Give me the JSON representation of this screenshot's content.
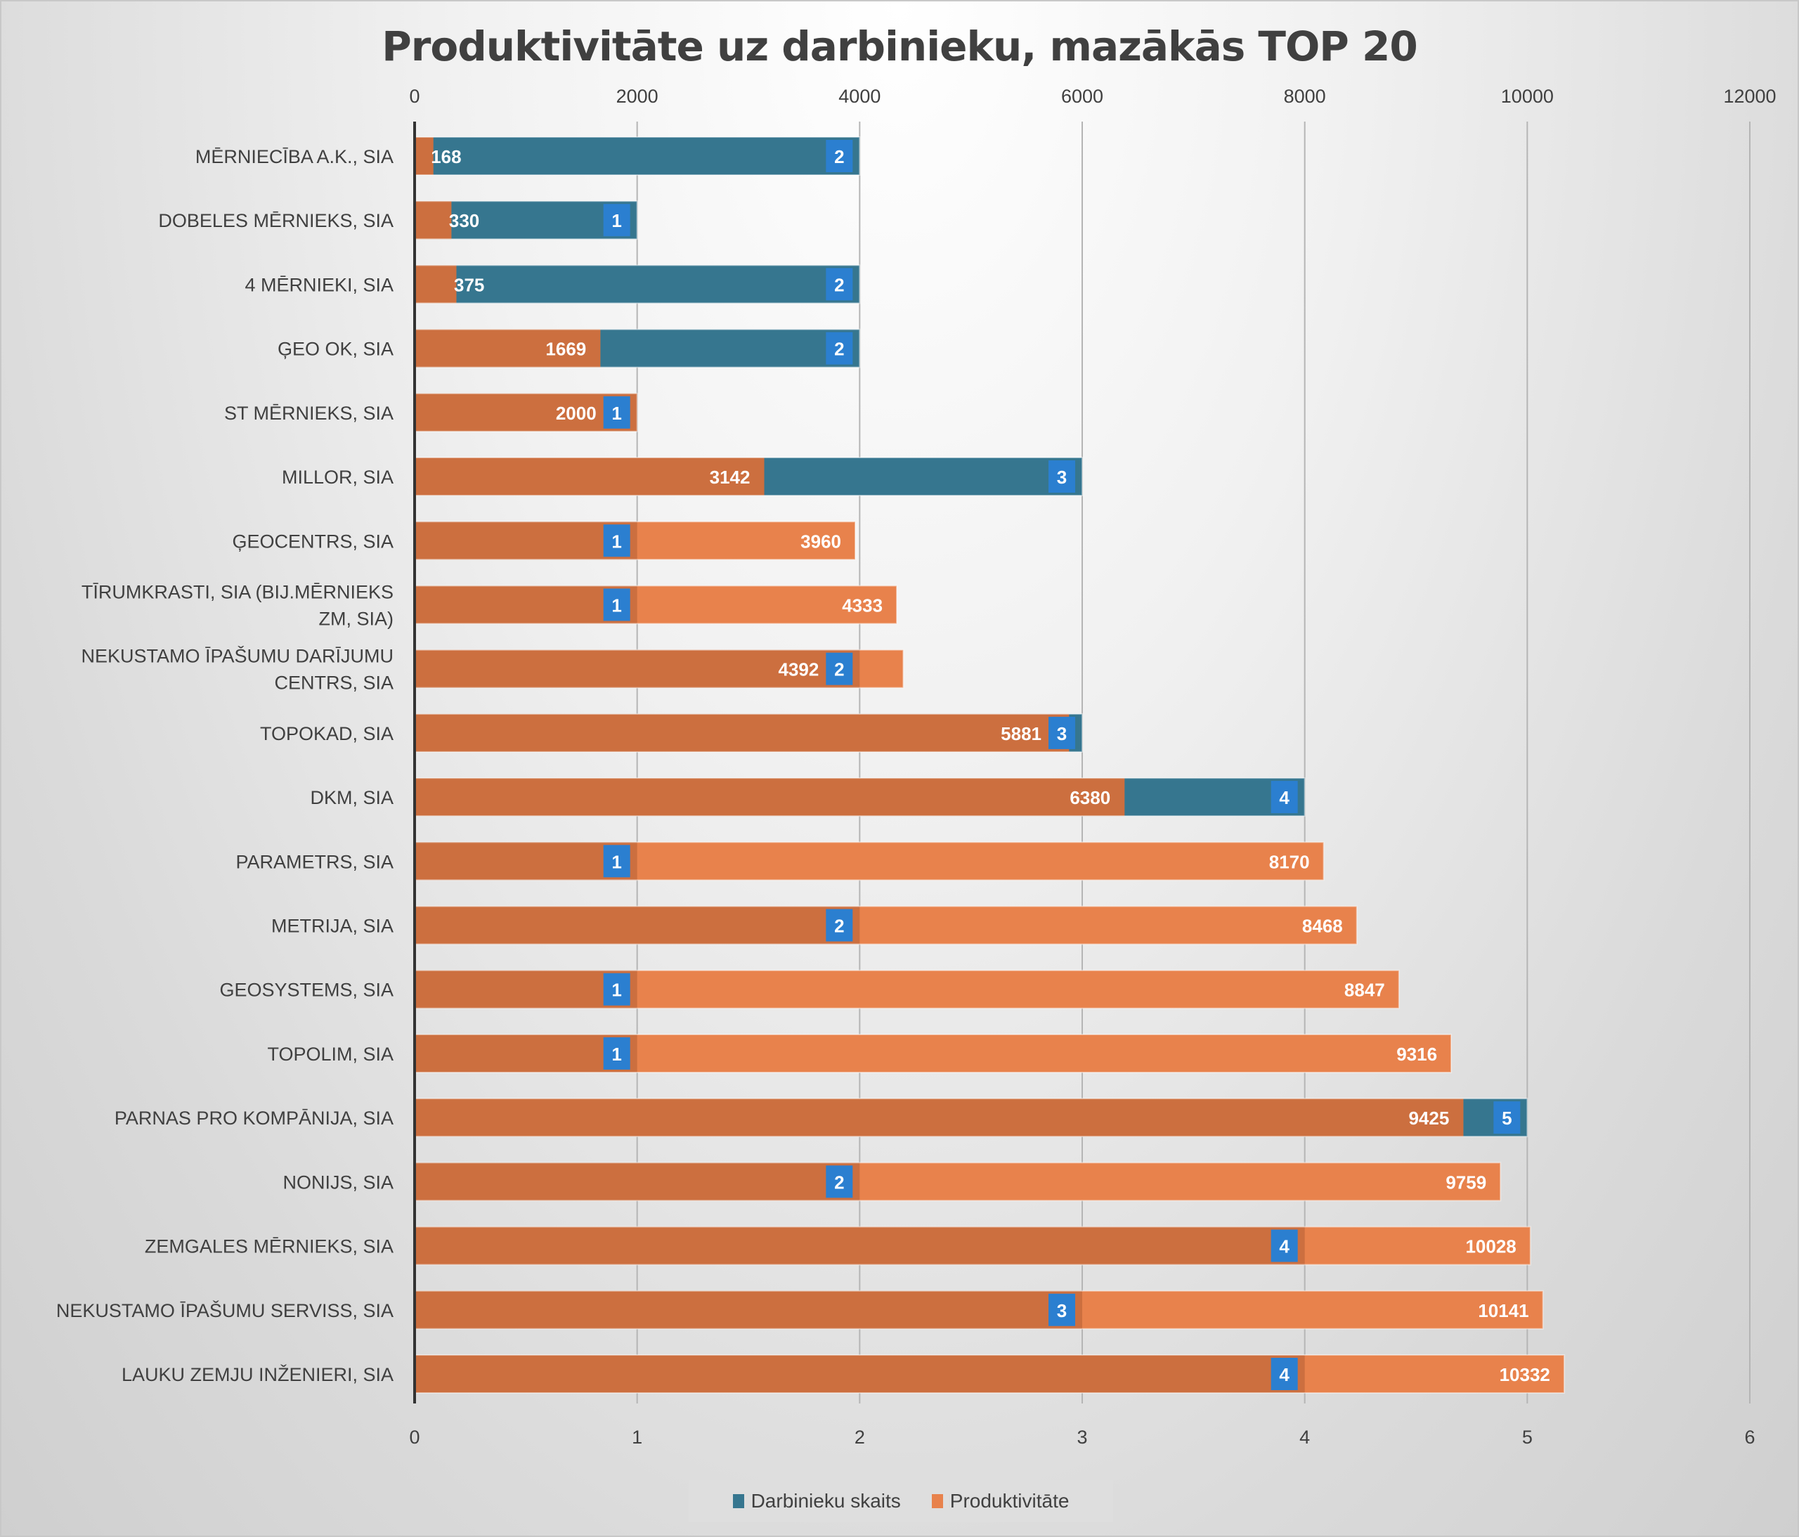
{
  "chart_data": {
    "type": "bar",
    "orientation": "horizontal",
    "title": "Produktivitāte uz darbinieku, mazākās TOP 20",
    "categories": [
      "MĒRNIECĪBA A.K., SIA",
      "DOBELES MĒRNIEKS, SIA",
      "4 MĒRNIEKI, SIA",
      "ĢEO OK, SIA",
      "ST MĒRNIEKS, SIA",
      "MILLOR, SIA",
      "ĢEOCENTRS, SIA",
      "TĪRUMKRASTI, SIA (BIJ.MĒRNIEKS ZM, SIA)",
      "NEKUSTAMO ĪPAŠUMU DARĪJUMU CENTRS, SIA",
      "TOPOKAD, SIA",
      "DKM, SIA",
      "PARAMETRS, SIA",
      "METRIJA, SIA",
      "GEOSYSTEMS, SIA",
      "TOPOLIM, SIA",
      "PARNAS PRO KOMPĀNIJA, SIA",
      "NONIJS, SIA",
      "ZEMGALES MĒRNIEKS, SIA",
      "NEKUSTAMO ĪPAŠUMU SERVISS, SIA",
      "LAUKU ZEMJU INŽENIERI, SIA"
    ],
    "series": [
      {
        "name": "Darbinieku skaits",
        "axis": "bottom",
        "color": "#36768f",
        "label_color": "#2b7fd0",
        "values": [
          2,
          1,
          2,
          2,
          1,
          3,
          1,
          1,
          2,
          3,
          4,
          1,
          2,
          1,
          1,
          5,
          2,
          4,
          3,
          4
        ]
      },
      {
        "name": "Produktivitāte",
        "axis": "top",
        "color": "#e8824c",
        "overlap_color": "#cc6f3f",
        "values": [
          168,
          330,
          375,
          1669,
          2000,
          3142,
          3960,
          4333,
          4392,
          5881,
          6380,
          8170,
          8468,
          8847,
          9316,
          9425,
          9759,
          10028,
          10141,
          10332
        ]
      }
    ],
    "x_bottom": {
      "range": [
        0,
        6
      ],
      "ticks": [
        "0",
        "1",
        "2",
        "3",
        "4",
        "5",
        "6"
      ]
    },
    "x_top": {
      "range": [
        0,
        12000
      ],
      "ticks": [
        "0",
        "2000",
        "4000",
        "6000",
        "8000",
        "10000",
        "12000"
      ]
    },
    "grid": true,
    "legend_position": "bottom"
  }
}
